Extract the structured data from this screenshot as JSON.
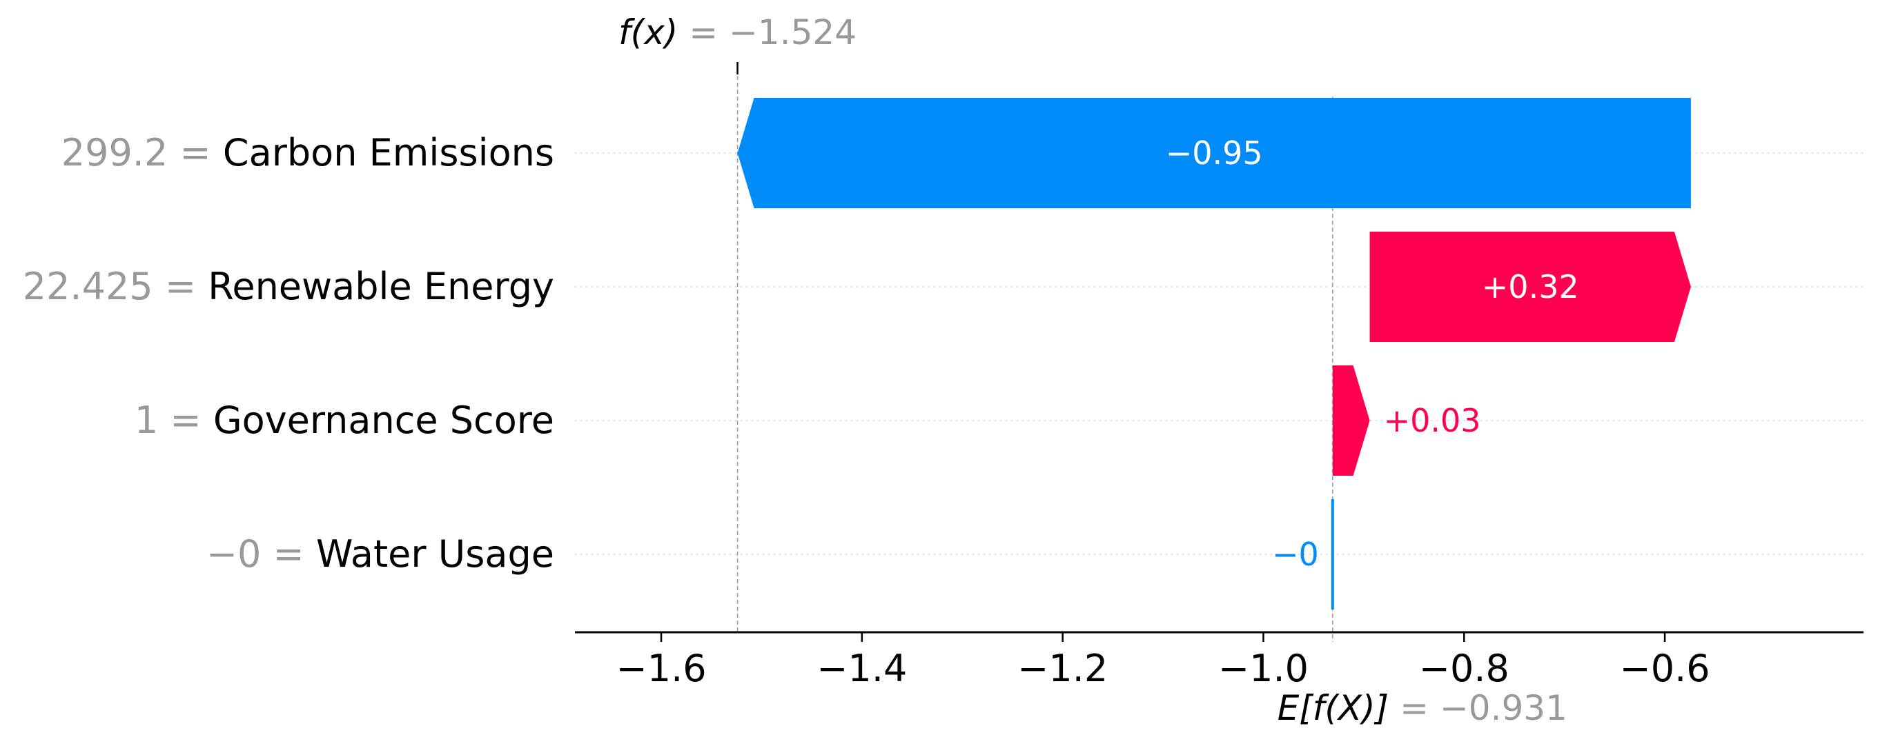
{
  "chart_data": {
    "type": "waterfall",
    "base_value": -0.931,
    "base_label_lhs": "E[f(X)]",
    "base_label_rhs": "= −0.931",
    "output_value": -1.524,
    "output_label_lhs": "f(x)",
    "output_label_rhs": "= −1.524",
    "features": [
      {
        "name": "Carbon Emissions",
        "value_text": "299.2",
        "contribution": -0.95,
        "label": "−0.95",
        "start": -0.574,
        "end": -1.524
      },
      {
        "name": "Renewable Energy",
        "value_text": "22.425",
        "contribution": 0.32,
        "label": "+0.32",
        "start": -0.894,
        "end": -0.574
      },
      {
        "name": "Governance Score",
        "value_text": "1",
        "contribution": 0.03,
        "label": "+0.03",
        "start": -0.931,
        "end": -0.894
      },
      {
        "name": "Water Usage",
        "value_text": "−0",
        "contribution": -0.0,
        "label": "−0",
        "start": -0.931,
        "end": -0.931
      }
    ],
    "xaxis": {
      "ticks": [
        -1.6,
        -1.4,
        -1.2,
        -1.0,
        -0.8,
        -0.6
      ],
      "tick_labels": [
        "−1.6",
        "−1.4",
        "−1.2",
        "−1.0",
        "−0.8",
        "−0.6"
      ],
      "xlim": [
        -1.686,
        -0.402
      ]
    },
    "colors": {
      "positive": "#ff0051",
      "negative": "#008bfb",
      "muted_text": "#999999",
      "grid": "#cccccc",
      "axis": "#000000"
    }
  }
}
